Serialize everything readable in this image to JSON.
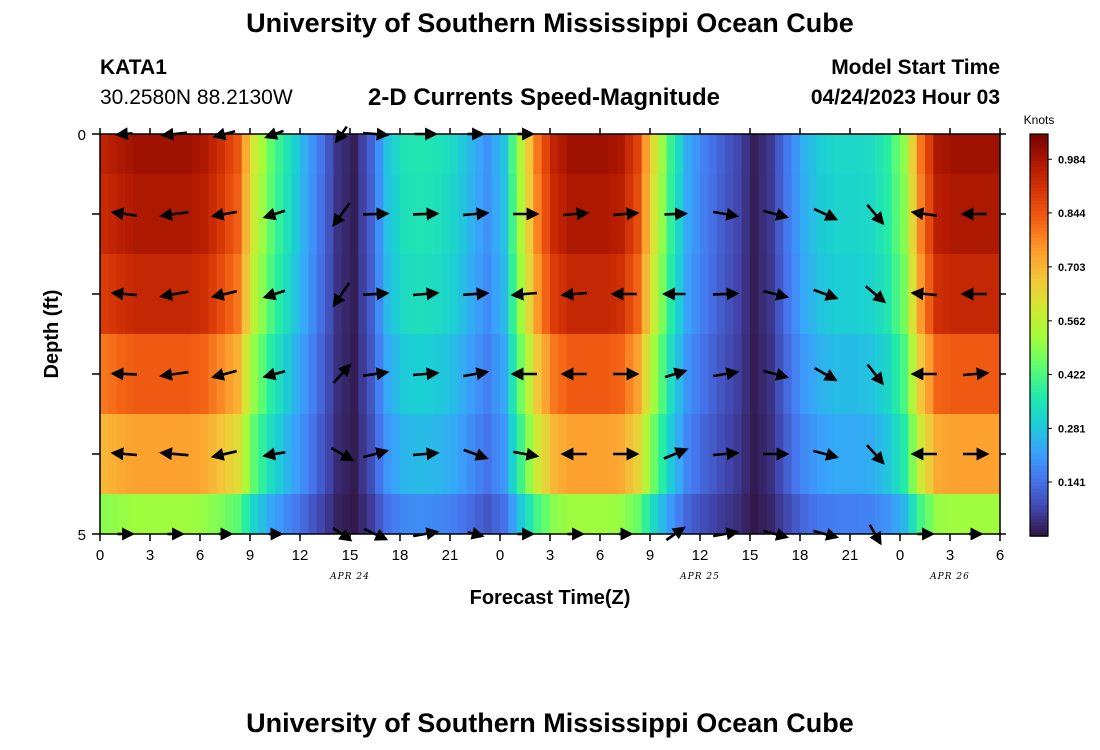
{
  "header": {
    "title": "University of Southern Mississippi Ocean Cube",
    "station": "KATA1",
    "coords": "30.2580N  88.2130W",
    "subtitle": "2-D Currents Speed-Magnitude",
    "model_label": "Model Start Time",
    "model_date": "04/24/2023 Hour 03",
    "bottom_title": "University of Southern Mississippi Ocean Cube"
  },
  "colors": {
    "palette": [
      "#30123b",
      "#4145ab",
      "#4675ed",
      "#39a2fc",
      "#1bcfd4",
      "#24eca6",
      "#61fc6c",
      "#a4fc3b",
      "#d1e834",
      "#f3c63a",
      "#fe9b2d",
      "#f36315",
      "#d93806",
      "#b11901",
      "#7a0402"
    ]
  },
  "chart_data": {
    "type": "heatmap",
    "xlabel": "Forecast Time(Z)",
    "ylabel": "Depth (ft)",
    "x_range_hours": [
      0,
      54
    ],
    "y_range_ft": [
      0,
      5
    ],
    "x_ticks": [
      "0",
      "3",
      "6",
      "9",
      "12",
      "15",
      "18",
      "21",
      "0",
      "3",
      "6",
      "9",
      "12",
      "15",
      "18",
      "21",
      "0",
      "3",
      "6"
    ],
    "y_ticks": [
      "0",
      "5"
    ],
    "date_labels": [
      {
        "text": "APR 24",
        "hour": 15
      },
      {
        "text": "APR 25",
        "hour": 36
      },
      {
        "text": "APR 26",
        "hour": 51
      }
    ],
    "colorbar": {
      "title": "Knots",
      "min": 0.0,
      "max": 1.05,
      "ticks": [
        "0.984",
        "0.844",
        "0.703",
        "0.562",
        "0.422",
        "0.281",
        "0.141"
      ],
      "tick_values": [
        0.984,
        0.844,
        0.703,
        0.562,
        0.422,
        0.281,
        0.141
      ]
    },
    "speed_profile": {
      "hours": [
        0,
        1,
        2,
        3,
        4,
        5,
        6,
        7,
        8,
        9,
        10,
        11,
        12,
        13,
        14,
        15,
        16,
        17,
        18,
        19,
        20,
        21,
        22,
        23,
        24,
        25,
        26,
        27,
        28,
        29,
        30,
        31,
        32,
        33,
        34,
        35,
        36,
        37,
        38,
        39,
        40,
        41,
        42,
        43,
        44,
        45,
        46,
        47,
        48,
        49,
        50,
        51,
        52,
        53,
        54
      ],
      "values": [
        0.95,
        0.98,
        1.0,
        1.0,
        1.0,
        1.0,
        0.98,
        0.92,
        0.85,
        0.6,
        0.45,
        0.35,
        0.25,
        0.15,
        0.05,
        0.02,
        0.12,
        0.28,
        0.35,
        0.36,
        0.35,
        0.32,
        0.26,
        0.2,
        0.28,
        0.55,
        0.8,
        0.95,
        1.0,
        1.0,
        1.0,
        0.98,
        0.88,
        0.62,
        0.4,
        0.24,
        0.17,
        0.12,
        0.08,
        0.02,
        0.06,
        0.16,
        0.25,
        0.3,
        0.32,
        0.32,
        0.33,
        0.38,
        0.5,
        0.8,
        0.98,
        1.0,
        1.0,
        1.0,
        1.0
      ]
    },
    "depth_rows": [
      {
        "depth": "0.25",
        "factor": 1.0
      },
      {
        "depth": "1.25",
        "factor": 0.98
      },
      {
        "depth": "2.25",
        "factor": 0.94
      },
      {
        "depth": "3.25",
        "factor": 0.84
      },
      {
        "depth": "4.25",
        "factor": 0.74
      },
      {
        "depth": "4.75",
        "factor": 0.52
      }
    ],
    "vectors": {
      "hours": [
        1.5,
        4.5,
        7.5,
        10.5,
        14.5,
        16.5,
        19.5,
        22.5,
        25.5,
        28.5,
        31.5,
        34.5,
        37.5,
        40.5,
        43.5,
        46.5,
        49.5,
        52.5
      ],
      "depth_rows_ft": [
        0,
        1,
        2,
        3,
        4,
        5
      ],
      "angles_deg": [
        [
          185,
          186,
          195,
          200,
          235,
          355,
          0,
          0,
          0,
          0,
          0,
          0,
          0,
          0,
          0,
          0,
          0,
          0
        ],
        [
          172,
          188,
          190,
          198,
          234,
          2,
          2,
          5,
          0,
          5,
          5,
          2,
          350,
          345,
          335,
          310,
          172,
          180
        ],
        [
          175,
          190,
          193,
          198,
          236,
          4,
          5,
          4,
          185,
          185,
          180,
          180,
          3,
          346,
          340,
          320,
          175,
          180
        ],
        [
          178,
          188,
          195,
          195,
          48,
          8,
          5,
          10,
          180,
          180,
          0,
          17,
          10,
          345,
          330,
          308,
          180,
          5
        ],
        [
          175,
          175,
          193,
          190,
          330,
          15,
          5,
          340,
          350,
          180,
          0,
          22,
          5,
          0,
          345,
          312,
          180,
          0
        ],
        [
          0,
          0,
          0,
          0,
          325,
          335,
          10,
          345,
          0,
          0,
          0,
          35,
          10,
          345,
          345,
          300,
          0,
          0
        ]
      ],
      "lengths": [
        [
          0.5,
          0.8,
          0.7,
          0.6,
          0.6,
          0.8,
          0.7,
          0.5,
          0.5,
          0.0,
          0.0,
          0.0,
          0.0,
          0.0,
          0.0,
          0.0,
          0.0,
          0.0
        ],
        [
          0.8,
          0.9,
          0.8,
          0.7,
          0.9,
          0.8,
          0.8,
          0.8,
          0.8,
          0.8,
          0.8,
          0.7,
          0.8,
          0.8,
          0.8,
          0.8,
          0.8,
          0.8
        ],
        [
          0.8,
          0.9,
          0.8,
          0.7,
          0.9,
          0.8,
          0.8,
          0.8,
          0.8,
          0.8,
          0.8,
          0.7,
          0.8,
          0.8,
          0.8,
          0.8,
          0.8,
          0.8
        ],
        [
          0.8,
          0.9,
          0.8,
          0.7,
          0.8,
          0.8,
          0.8,
          0.8,
          0.8,
          0.8,
          0.8,
          0.7,
          0.8,
          0.8,
          0.8,
          0.8,
          0.8,
          0.8
        ],
        [
          0.8,
          0.9,
          0.8,
          0.7,
          0.8,
          0.8,
          0.8,
          0.8,
          0.8,
          0.8,
          0.8,
          0.8,
          0.8,
          0.8,
          0.8,
          0.8,
          0.8,
          0.8
        ],
        [
          0.5,
          0.5,
          0.4,
          0.4,
          0.7,
          0.8,
          0.8,
          0.5,
          0.5,
          0.5,
          0.4,
          0.7,
          0.8,
          0.8,
          0.8,
          0.7,
          0.5,
          0.4
        ]
      ]
    }
  }
}
